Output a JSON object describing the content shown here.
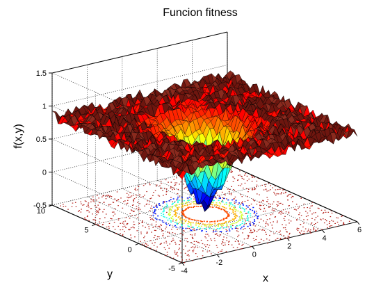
{
  "chart_data": {
    "type": "surface3d",
    "title": "Funcion fitness",
    "xlabel": "x",
    "ylabel": "y",
    "zlabel": "f(x,y)",
    "xlim": [
      -4,
      6
    ],
    "ylim": [
      -5,
      10
    ],
    "zlim": [
      -0.5,
      1.5
    ],
    "x_ticks": [
      -4,
      -2,
      0,
      2,
      4,
      6
    ],
    "y_ticks": [
      -5,
      0,
      5,
      10
    ],
    "z_ticks": [
      -0.5,
      0,
      0.5,
      1,
      1.5
    ],
    "x_tick_labels": [
      "-4",
      "-2",
      "0",
      "2",
      "4",
      "6"
    ],
    "y_tick_labels": [
      "-5",
      "0",
      "5",
      "10"
    ],
    "z_tick_labels": [
      "-0.5",
      "0",
      "0.5",
      "1",
      "1.5"
    ],
    "grid": true,
    "colormap": "jet",
    "minimum": {
      "x": 1.0,
      "y": 2.5,
      "f": -0.4
    },
    "plateau_level": 0.85,
    "contour_plane_z": -0.5,
    "surface_colors": {
      "plateau": "#7f1a14",
      "mid": "#e8c020",
      "low": "#1030c0"
    }
  }
}
